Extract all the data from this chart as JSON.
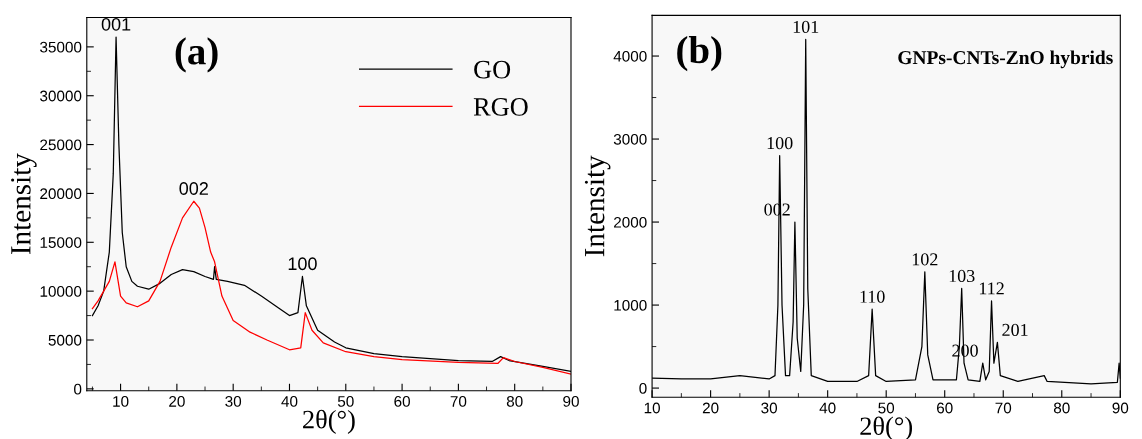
{
  "chart_data": [
    {
      "type": "line",
      "xlabel": "2θ(°)",
      "ylabel": "Intensity",
      "xlim": [
        4,
        90
      ],
      "ylim": [
        -190,
        38000
      ],
      "xticks": [
        {
          "value": 5,
          "label": null
        },
        10,
        {
          "value": 15,
          "label": null
        },
        20,
        {
          "value": 25,
          "label": null
        },
        30,
        {
          "value": 35,
          "label": null
        },
        40,
        {
          "value": 45,
          "label": null
        },
        50,
        {
          "value": 55,
          "label": null
        },
        60,
        {
          "value": 65,
          "label": null
        },
        70,
        {
          "value": 75,
          "label": null
        },
        80,
        {
          "value": 85,
          "label": null
        },
        90
      ],
      "yticks": [
        0,
        {
          "value": 2500,
          "label": null
        },
        5000,
        {
          "value": 7500,
          "label": null
        },
        10000,
        {
          "value": 12500,
          "label": null
        },
        15000,
        {
          "value": 17500,
          "label": null
        },
        20000,
        {
          "value": 22500,
          "label": null
        },
        25000,
        {
          "value": 27500,
          "label": null
        },
        30000,
        {
          "value": 32500,
          "label": null
        },
        35000
      ],
      "legend": "top right",
      "grid": false,
      "series": [
        {
          "name": "GO",
          "color": "#000000",
          "x": [
            5,
            6,
            7,
            8,
            8.7,
            9.2,
            9.7,
            10.3,
            11,
            12,
            13,
            15,
            17,
            19,
            21,
            23,
            25,
            26.5,
            26.7,
            27,
            29,
            32,
            35,
            38,
            40,
            41.5,
            42.3,
            43,
            45,
            48,
            50,
            55,
            60,
            70,
            76,
            77.5,
            79,
            85,
            90
          ],
          "values": [
            7500,
            8500,
            10000,
            14000,
            22000,
            36000,
            25000,
            16000,
            12500,
            11000,
            10500,
            10200,
            10800,
            11700,
            12200,
            12000,
            11500,
            11200,
            12500,
            11200,
            11000,
            10600,
            9500,
            8300,
            7500,
            7800,
            11500,
            8500,
            6000,
            4800,
            4200,
            3600,
            3300,
            2900,
            2800,
            3300,
            2900,
            2300,
            1800
          ]
        },
        {
          "name": "RGO",
          "color": "#ff0000",
          "x": [
            5,
            6,
            8,
            9,
            10,
            11,
            13,
            15,
            17,
            19,
            21,
            23,
            24,
            25,
            26,
            26.7,
            28,
            30,
            33,
            36,
            40,
            42,
            42.8,
            44,
            46,
            50,
            55,
            60,
            70,
            77,
            78,
            80,
            85,
            90
          ],
          "values": [
            8200,
            9000,
            11000,
            13000,
            9500,
            8800,
            8400,
            9000,
            11000,
            14500,
            17500,
            19200,
            18500,
            16500,
            14000,
            13000,
            9500,
            7000,
            5800,
            5000,
            4000,
            4200,
            7800,
            6000,
            4700,
            3800,
            3300,
            3000,
            2700,
            2600,
            3200,
            2800,
            2200,
            1500
          ]
        }
      ],
      "annotations": [
        "(a)",
        {
          "text": "001",
          "x": 9.2,
          "y": 36000
        },
        {
          "text": "002",
          "x": 23,
          "y": 19200
        },
        {
          "text": "100",
          "x": 42.3,
          "y": 11500
        }
      ]
    },
    {
      "type": "line",
      "xlabel": "2θ(°)",
      "ylabel": "Intensity",
      "xlim": [
        10,
        90
      ],
      "ylim": [
        -111,
        4490
      ],
      "xticks": [
        10,
        {
          "value": 15,
          "label": null
        },
        20,
        {
          "value": 25,
          "label": null
        },
        30,
        {
          "value": 35,
          "label": null
        },
        40,
        {
          "value": 45,
          "label": null
        },
        50,
        {
          "value": 55,
          "label": null
        },
        60,
        {
          "value": 65,
          "label": null
        },
        70,
        {
          "value": 75,
          "label": null
        },
        80,
        {
          "value": 85,
          "label": null
        },
        90
      ],
      "yticks": [
        0,
        {
          "value": 500,
          "label": null
        },
        1000,
        {
          "value": 1500,
          "label": null
        },
        2000,
        {
          "value": 2500,
          "label": null
        },
        3000,
        {
          "value": 3500,
          "label": null
        },
        4000
      ],
      "grid": false,
      "series": [
        {
          "color": "#000000",
          "x": [
            10,
            15,
            20,
            25,
            30,
            31,
            31.5,
            31.8,
            32.2,
            32.8,
            33.5,
            34.1,
            34.4,
            34.8,
            35.4,
            35.9,
            36.25,
            36.6,
            37.2,
            40,
            45,
            47,
            47.6,
            48.2,
            50,
            55,
            56.1,
            56.6,
            57.1,
            58,
            62,
            62.5,
            62.9,
            63.3,
            64,
            66,
            66.5,
            67,
            67.6,
            68,
            68.4,
            69,
            69.5,
            72.5,
            77,
            77.5,
            85,
            89.5,
            89.8,
            90
          ],
          "values": [
            120,
            110,
            110,
            150,
            110,
            150,
            1000,
            2800,
            1000,
            150,
            150,
            800,
            2000,
            600,
            200,
            1000,
            4200,
            1200,
            150,
            80,
            80,
            150,
            950,
            150,
            80,
            100,
            500,
            1400,
            400,
            100,
            100,
            500,
            1200,
            300,
            100,
            80,
            300,
            100,
            200,
            1050,
            300,
            550,
            150,
            80,
            150,
            80,
            50,
            70,
            300,
            120
          ]
        }
      ],
      "annotations": [
        "(b)",
        "GNPs-CNTs-ZnO hybrids",
        {
          "text": "100",
          "x": 31.8,
          "y": 2800
        },
        {
          "text": "002",
          "x": 34.4,
          "y": 2000
        },
        {
          "text": "101",
          "x": 36.25,
          "y": 4200
        },
        {
          "text": "110",
          "x": 47.6,
          "y": 950
        },
        {
          "text": "102",
          "x": 56.6,
          "y": 1400
        },
        {
          "text": "103",
          "x": 62.9,
          "y": 1200
        },
        {
          "text": "200",
          "x": 66.5,
          "y": 300
        },
        {
          "text": "112",
          "x": 68,
          "y": 1050
        },
        {
          "text": "201",
          "x": 69,
          "y": 550
        }
      ]
    }
  ]
}
